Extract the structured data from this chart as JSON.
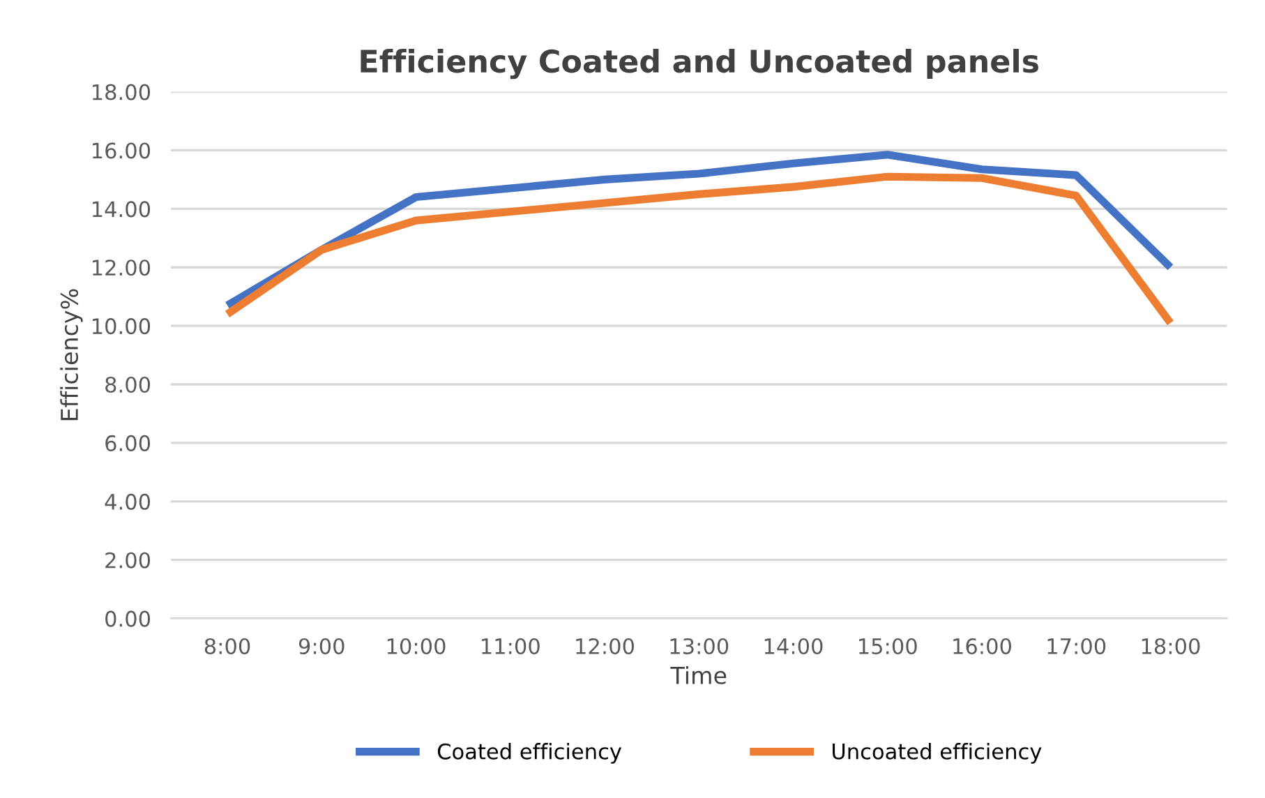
{
  "chart_data": {
    "type": "line",
    "title": "Efficiency Coated and Uncoated panels",
    "xlabel": "Time",
    "ylabel": "Efficiency%",
    "categories": [
      "8:00",
      "9:00",
      "10:00",
      "11:00",
      "12:00",
      "13:00",
      "14:00",
      "15:00",
      "16:00",
      "17:00",
      "18:00"
    ],
    "series": [
      {
        "name": "Coated efficiency",
        "color": "#4472c4",
        "values": [
          10.7,
          12.6,
          14.4,
          14.7,
          15.0,
          15.2,
          15.55,
          15.85,
          15.35,
          15.15,
          12.0
        ]
      },
      {
        "name": "Uncoated efficiency",
        "color": "#ed7d31",
        "values": [
          10.4,
          12.6,
          13.6,
          13.9,
          14.2,
          14.5,
          14.75,
          15.1,
          15.05,
          14.45,
          10.1
        ]
      }
    ],
    "ylim": [
      0,
      18
    ],
    "yticks": [
      {
        "value": 0,
        "label": "0.00"
      },
      {
        "value": 2,
        "label": "2.00"
      },
      {
        "value": 4,
        "label": "4.00"
      },
      {
        "value": 6,
        "label": "6.00"
      },
      {
        "value": 8,
        "label": "8.00"
      },
      {
        "value": 10,
        "label": "10.00"
      },
      {
        "value": 12,
        "label": "12.00"
      },
      {
        "value": 14,
        "label": "14.00"
      },
      {
        "value": 16,
        "label": "16.00"
      },
      {
        "value": 18,
        "label": "18.00"
      }
    ],
    "grid": "y",
    "legend": "bottom",
    "marker": "none",
    "line_style": "solid"
  }
}
